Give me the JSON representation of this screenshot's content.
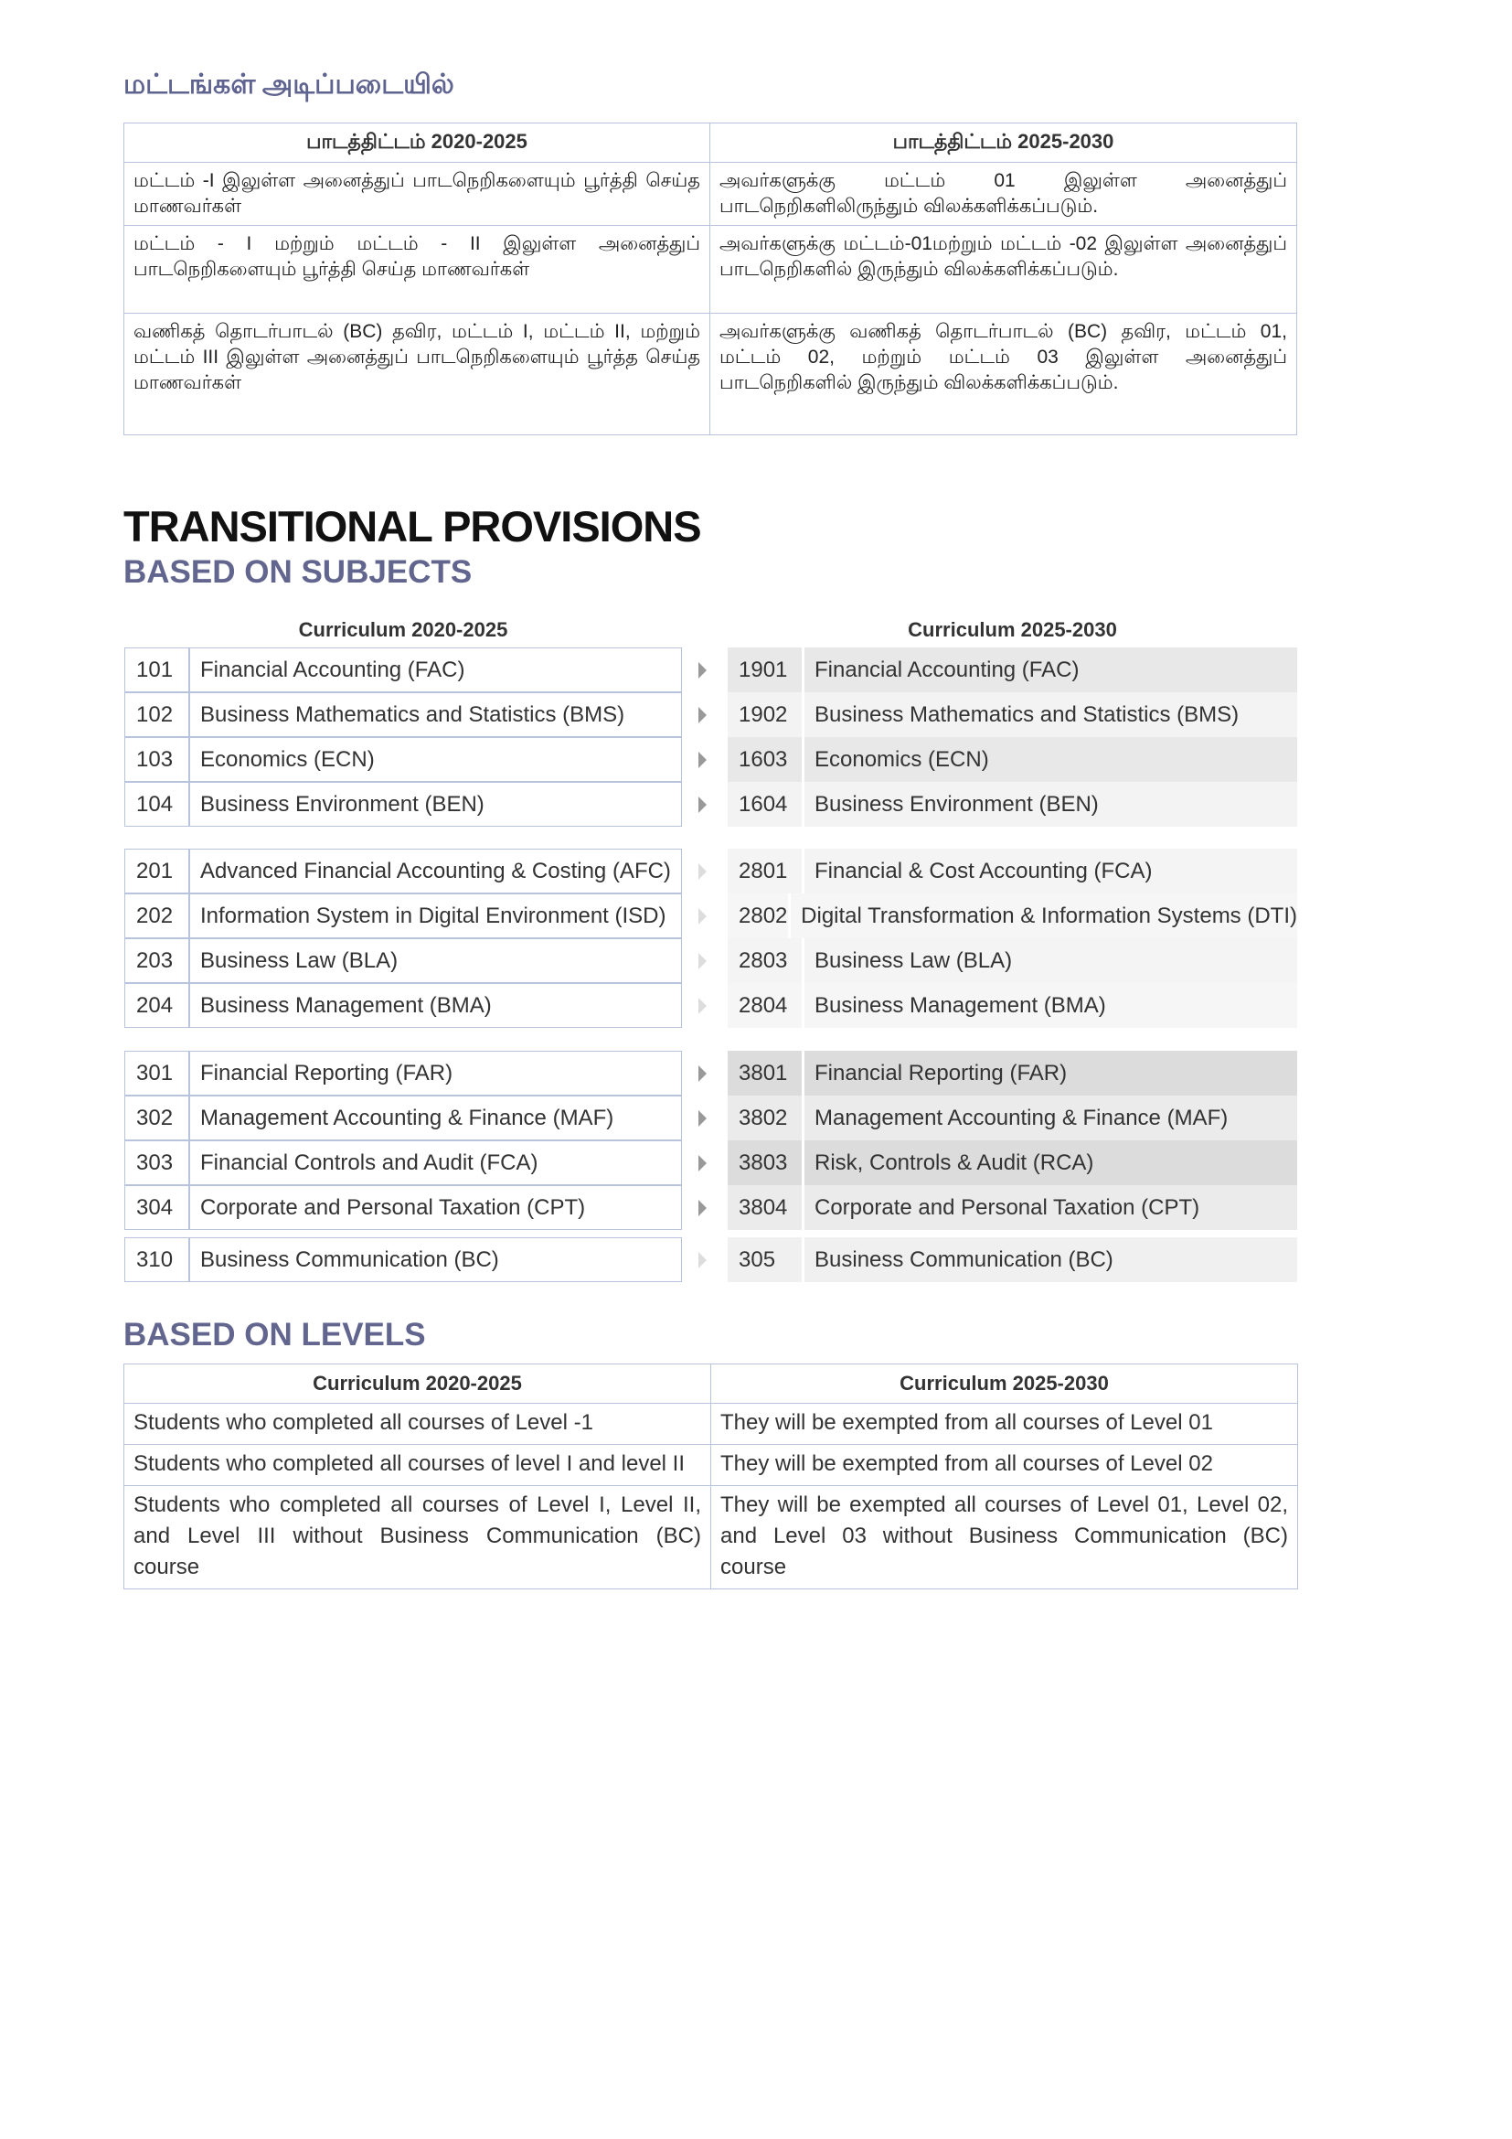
{
  "tamil_section": {
    "heading": "மட்டங்கள் அடிப்படையில்",
    "headers": [
      "பாடத்திட்டம் 2020-2025",
      "பாடத்திட்டம் 2025-2030"
    ],
    "rows": [
      [
        "மட்டம் -I இலுள்ள அனைத்துப் பாடநெறிகளையும் பூர்த்தி செய்த மாணவர்கள்",
        "அவர்களுக்கு மட்டம் 01 இலுள்ள அனைத்துப் பாடநெறிகளிலிருந்தும் விலக்களிக்கப்படும்."
      ],
      [
        "மட்டம் - I மற்றும் மட்டம் - II இலுள்ள அனைத்துப் பாடநெறிகளையும் பூர்த்தி செய்த மாணவர்கள்",
        "அவர்களுக்கு மட்டம்-01மற்றும் மட்டம் -02 இலுள்ள அனைத்துப் பாடநெறிகளில் இருந்தும் விலக்களிக்கப்படும்."
      ],
      [
        "வணிகத் தொடர்பாடல் (BC) தவிர, மட்டம் I, மட்டம் II, மற்றும் மட்டம் III இலுள்ள அனைத்துப் பாடநெறிகளையும் பூர்த்த செய்த மாணவர்கள்",
        "அவர்களுக்கு வணிகத் தொடர்பாடல் (BC) தவிர, மட்டம் 01, மட்டம் 02, மற்றும் மட்டம் 03 இலுள்ள அனைத்துப் பாடநெறிகளில் இருந்தும் விலக்களிக்கப்படும்."
      ]
    ]
  },
  "title": "TRANSITIONAL PROVISIONS",
  "subjects": {
    "heading": "BASED ON SUBJECTS",
    "left_header": "Curriculum 2020-2025",
    "right_header": "Curriculum 2025-2030",
    "rows": [
      {
        "old_code": "101",
        "old_name": "Financial Accounting (FAC)",
        "new_code": "1901",
        "new_name": "Financial Accounting (FAC)"
      },
      {
        "old_code": "102",
        "old_name": "Business Mathematics and Statistics (BMS)",
        "new_code": "1902",
        "new_name": "Business Mathematics and Statistics (BMS)"
      },
      {
        "old_code": "103",
        "old_name": "Economics (ECN)",
        "new_code": "1603",
        "new_name": "Economics (ECN)"
      },
      {
        "old_code": "104",
        "old_name": "Business Environment (BEN)",
        "new_code": "1604",
        "new_name": "Business Environment (BEN)"
      },
      {
        "old_code": "201",
        "old_name": "Advanced Financial Accounting & Costing (AFC)",
        "new_code": "2801",
        "new_name": "Financial & Cost Accounting (FCA)"
      },
      {
        "old_code": "202",
        "old_name": "Information System in Digital Environment (ISD)",
        "new_code": "2802",
        "new_name": "Digital Transformation & Information Systems (DTI)"
      },
      {
        "old_code": "203",
        "old_name": "Business Law (BLA)",
        "new_code": "2803",
        "new_name": "Business Law (BLA)"
      },
      {
        "old_code": "204",
        "old_name": "Business Management (BMA)",
        "new_code": "2804",
        "new_name": "Business Management (BMA)"
      },
      {
        "old_code": "301",
        "old_name": "Financial Reporting (FAR)",
        "new_code": "3801",
        "new_name": "Financial Reporting (FAR)"
      },
      {
        "old_code": "302",
        "old_name": "Management Accounting & Finance (MAF)",
        "new_code": "3802",
        "new_name": "Management Accounting & Finance (MAF)"
      },
      {
        "old_code": "303",
        "old_name": "Financial Controls and Audit (FCA)",
        "new_code": "3803",
        "new_name": "Risk, Controls & Audit (RCA)"
      },
      {
        "old_code": "304",
        "old_name": "Corporate and Personal Taxation (CPT)",
        "new_code": "3804",
        "new_name": "Corporate and Personal Taxation (CPT)"
      },
      {
        "old_code": "310",
        "old_name": "Business Communication (BC)",
        "new_code": "305",
        "new_name": "Business Communication (BC)"
      }
    ]
  },
  "levels": {
    "heading": "BASED ON LEVELS",
    "headers": [
      "Curriculum 2020-2025",
      "Curriculum 2025-2030"
    ],
    "rows": [
      [
        "Students who completed all courses of Level -1",
        "They will be exempted from all courses of Level 01"
      ],
      [
        "Students who completed all courses of level I and level II",
        "They will be exempted from all courses of Level 02"
      ],
      [
        "Students who completed all courses of Level I, Level II, and Level III without Business Communication (BC) course",
        "They will be exempted all courses of Level 01, Level 02, and Level 03 without Business Communication (BC) course"
      ]
    ]
  },
  "colors": {
    "heading_accent": "#62668f",
    "table_border": "#b8c4de"
  }
}
